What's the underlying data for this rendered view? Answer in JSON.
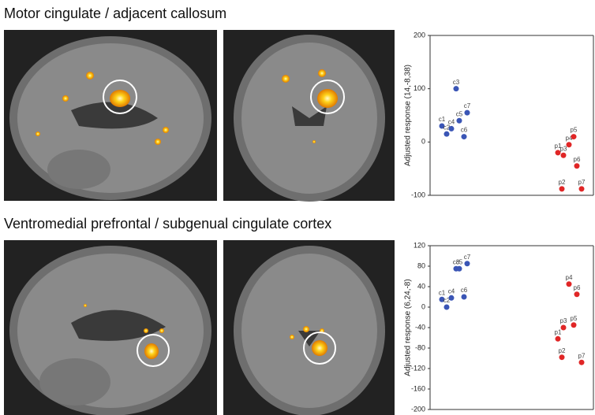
{
  "chart_data": [
    {
      "type": "scatter",
      "title": "Motor cingulate / adjacent callosum",
      "ylabel": "Adjusted response (14,-8,38)",
      "ylim": [
        -100,
        200
      ],
      "yticks": [
        -100,
        0,
        100,
        200
      ],
      "series": [
        {
          "color": "#3a55b5",
          "labels": [
            "c1",
            "c2",
            "c3",
            "c4",
            "c5",
            "c6",
            "c7"
          ],
          "values": [
            30,
            15,
            100,
            25,
            40,
            10,
            55
          ]
        },
        {
          "color": "#e02626",
          "labels": [
            "p1",
            "p2",
            "p3",
            "p4",
            "p5",
            "p6",
            "p7"
          ],
          "values": [
            -20,
            -88,
            -25,
            -5,
            10,
            -45,
            -88
          ]
        }
      ]
    },
    {
      "type": "scatter",
      "title": "Ventromedial prefrontal / subgenual cingulate cortex",
      "ylabel": "Adjusted response (6,24,-8)",
      "ylim": [
        -200,
        120
      ],
      "yticks": [
        -200,
        -160,
        -120,
        -80,
        -40,
        0,
        40,
        80,
        120
      ],
      "series": [
        {
          "color": "#3a55b5",
          "labels": [
            "c1",
            "c2",
            "c3",
            "c4",
            "c5",
            "c6",
            "c7"
          ],
          "values": [
            15,
            0,
            75,
            18,
            75,
            20,
            85
          ]
        },
        {
          "color": "#e02626",
          "labels": [
            "p1",
            "p2",
            "p3",
            "p4",
            "p5",
            "p6",
            "p7"
          ],
          "values": [
            -62,
            -98,
            -40,
            45,
            -35,
            25,
            -108
          ]
        }
      ]
    }
  ]
}
